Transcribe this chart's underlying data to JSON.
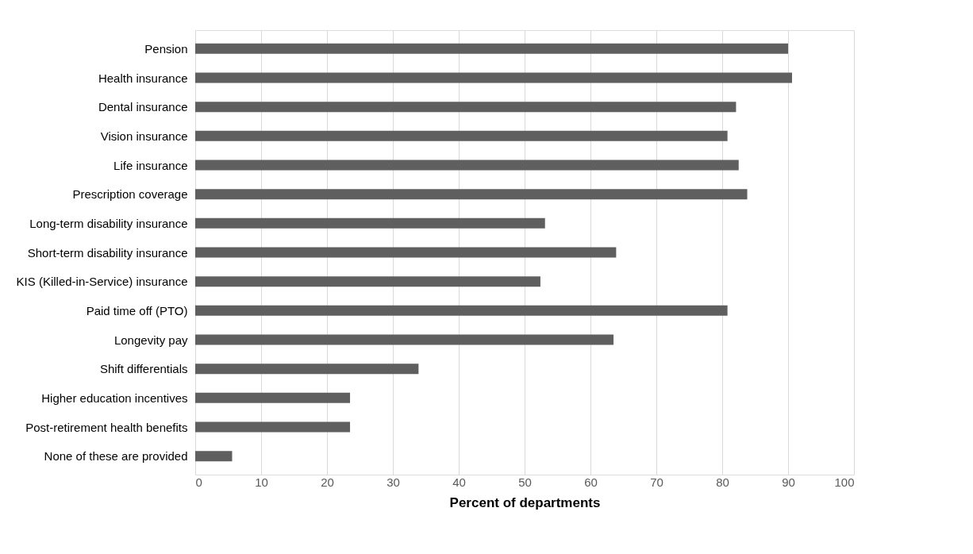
{
  "chart_data": {
    "type": "bar",
    "orientation": "horizontal",
    "xlabel": "Percent of departments",
    "categories": [
      "Pension",
      "Health insurance",
      "Dental insurance",
      "Vision insurance",
      "Life insurance",
      "Prescription coverage",
      "Long-term disability insurance",
      "Short-term disability insurance",
      "KIS (Killed-in-Service) insurance",
      "Paid time off (PTO)",
      "Longevity pay",
      "Shift differentials",
      "Higher education incentives",
      "Post-retirement health benefits",
      "None of these are provided"
    ],
    "values": [
      90.0,
      90.6,
      82.1,
      80.8,
      82.5,
      83.8,
      53.1,
      63.9,
      52.4,
      80.8,
      63.5,
      33.9,
      23.5,
      23.5,
      5.6
    ],
    "color": "#5f5f5f",
    "xlim": [
      0,
      100
    ],
    "xticks": [
      0,
      10,
      20,
      30,
      40,
      50,
      60,
      70,
      80,
      90,
      100
    ],
    "grid": "x"
  }
}
